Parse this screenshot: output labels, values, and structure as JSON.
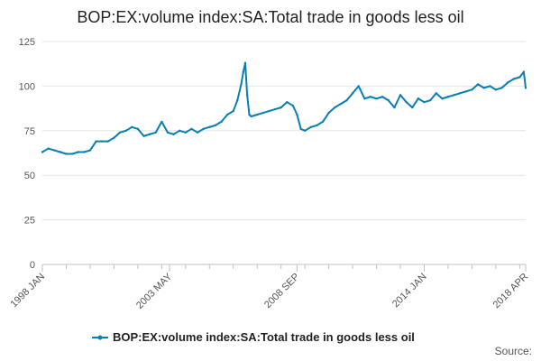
{
  "chart_data": {
    "type": "line",
    "title": "BOP:EX:volume index:SA:Total trade in goods less oil",
    "xlabel": "",
    "ylabel": "",
    "x_range": [
      1998.0,
      2018.25
    ],
    "ylim": [
      0,
      125
    ],
    "y_ticks": [
      0,
      25,
      50,
      75,
      100,
      125
    ],
    "x_ticks": [
      {
        "label": "1998 JAN",
        "x": 1998.0
      },
      {
        "label": "2003 MAY",
        "x": 2003.33
      },
      {
        "label": "2008 SEP",
        "x": 2008.67
      },
      {
        "label": "2014 JAN",
        "x": 2014.0
      },
      {
        "label": "2018 APR",
        "x": 2018.25
      }
    ],
    "grid": true,
    "legend_position": "bottom-center",
    "colors": {
      "series": "#0a7fb3",
      "grid": "#e6e6e6",
      "axis": "#c0c0c0"
    },
    "series": [
      {
        "name": "BOP:EX:volume index:SA:Total trade in goods less oil",
        "x": [
          1998.0,
          1998.25,
          1998.5,
          1998.75,
          1999.0,
          1999.25,
          1999.5,
          1999.75,
          2000.0,
          2000.25,
          2000.5,
          2000.75,
          2001.0,
          2001.25,
          2001.5,
          2001.75,
          2002.0,
          2002.25,
          2002.5,
          2002.75,
          2003.0,
          2003.25,
          2003.5,
          2003.75,
          2004.0,
          2004.25,
          2004.5,
          2004.75,
          2005.0,
          2005.25,
          2005.5,
          2005.75,
          2006.0,
          2006.17,
          2006.33,
          2006.42,
          2006.5,
          2006.58,
          2006.67,
          2006.75,
          2007.0,
          2007.25,
          2007.5,
          2007.75,
          2008.0,
          2008.25,
          2008.5,
          2008.67,
          2008.83,
          2009.0,
          2009.25,
          2009.5,
          2009.75,
          2010.0,
          2010.25,
          2010.5,
          2010.75,
          2011.0,
          2011.25,
          2011.5,
          2011.75,
          2012.0,
          2012.25,
          2012.5,
          2012.75,
          2013.0,
          2013.25,
          2013.5,
          2013.75,
          2014.0,
          2014.25,
          2014.5,
          2014.75,
          2015.0,
          2015.25,
          2015.5,
          2015.75,
          2016.0,
          2016.25,
          2016.5,
          2016.75,
          2017.0,
          2017.25,
          2017.5,
          2017.75,
          2018.0,
          2018.17,
          2018.25
        ],
        "values": [
          63,
          65,
          64,
          63,
          62,
          62,
          63,
          63,
          64,
          69,
          69,
          69,
          71,
          74,
          75,
          77,
          76,
          72,
          73,
          74,
          80,
          74,
          73,
          75,
          74,
          76,
          74,
          76,
          77,
          78,
          80,
          84,
          86,
          92,
          101,
          108,
          113,
          95,
          84,
          83,
          84,
          85,
          86,
          87,
          88,
          91,
          89,
          84,
          76,
          75,
          77,
          78,
          80,
          85,
          88,
          90,
          92,
          96,
          100,
          93,
          94,
          93,
          94,
          92,
          88,
          95,
          91,
          88,
          93,
          91,
          92,
          96,
          93,
          94,
          95,
          96,
          97,
          98,
          101,
          99,
          100,
          98,
          99,
          102,
          104,
          105,
          108,
          99
        ]
      }
    ]
  },
  "legend": {
    "label": "BOP:EX:volume index:SA:Total trade in goods less oil"
  },
  "credits": {
    "text": "Source:"
  }
}
